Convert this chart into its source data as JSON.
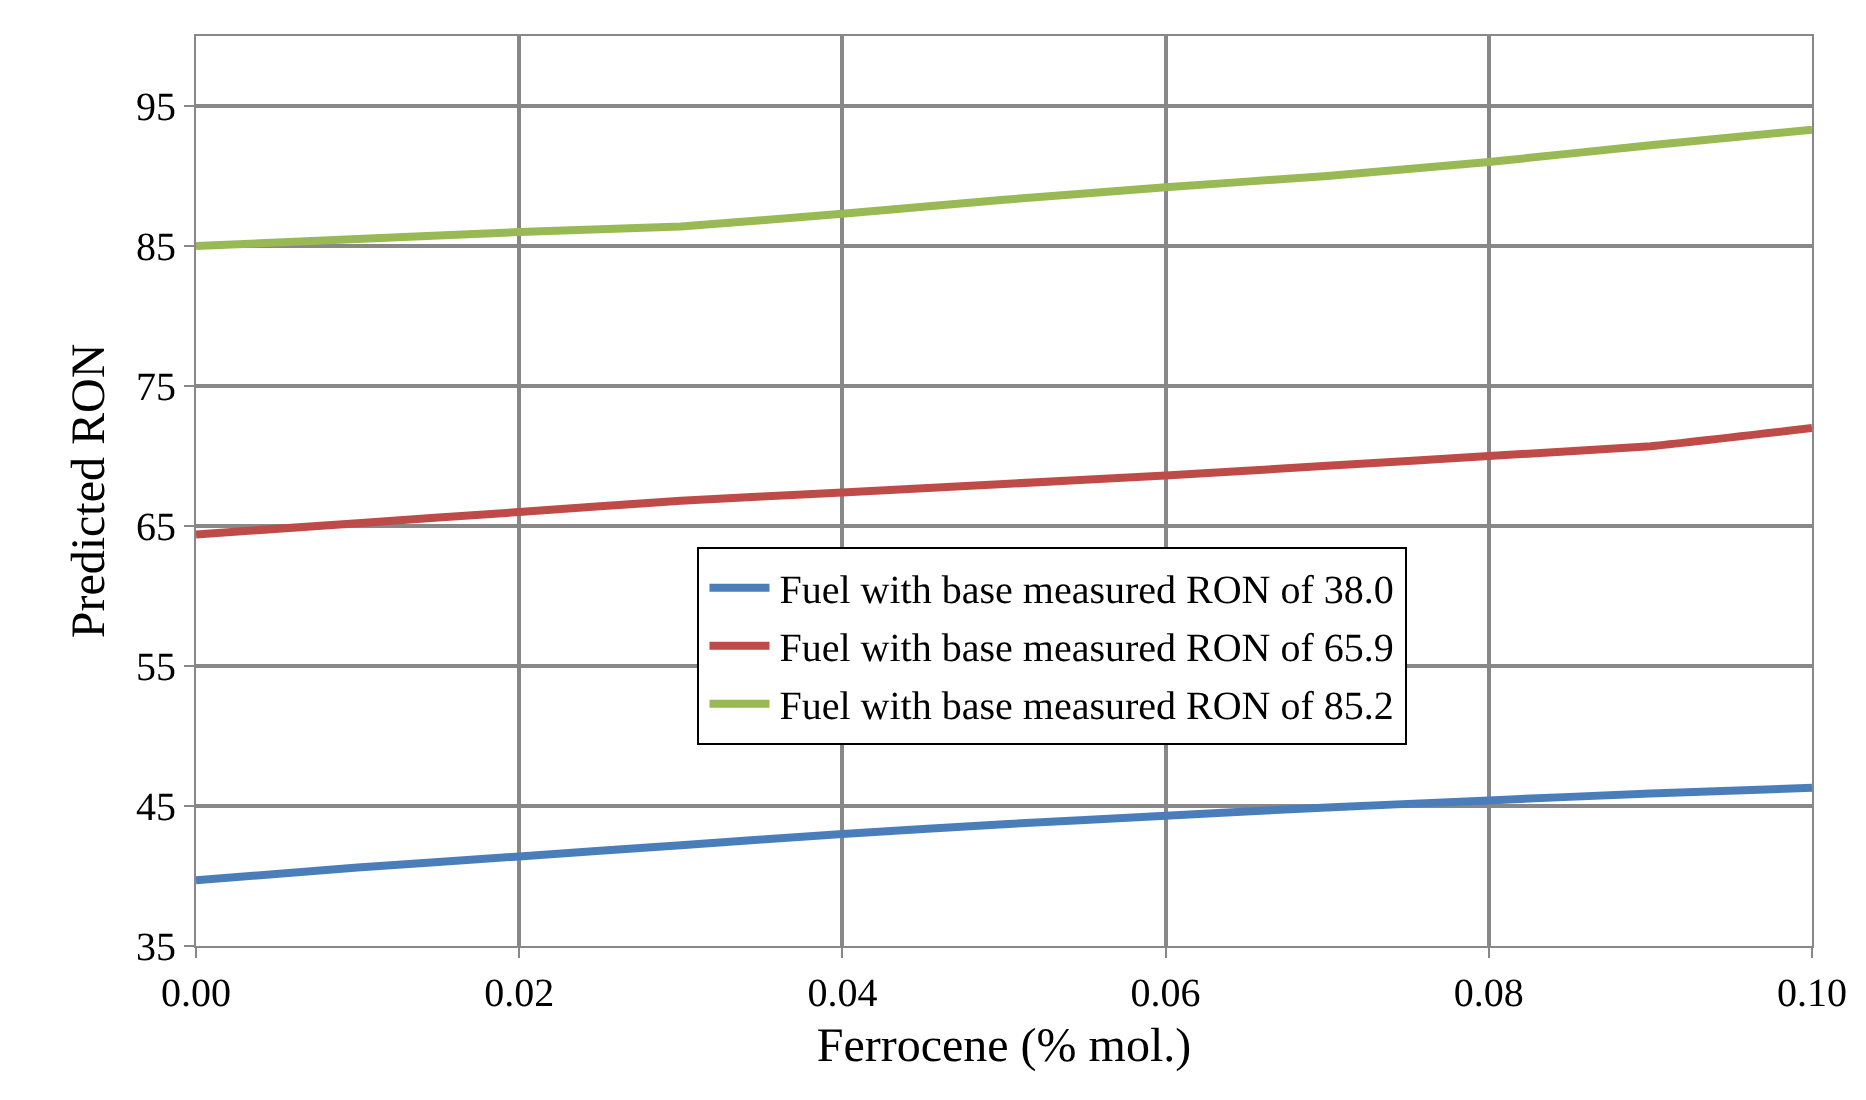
{
  "chart_data": {
    "type": "line",
    "xlabel": "Ferrocene (% mol.)",
    "ylabel": "Predicted RON",
    "x": [
      0,
      0.01,
      0.02,
      0.03,
      0.04,
      0.05,
      0.06,
      0.07,
      0.08,
      0.09,
      0.1
    ],
    "series": [
      {
        "name": "Fuel with base measured RON of 38.0",
        "color": "#4a7ebb",
        "values": [
          39.7,
          40.6,
          41.4,
          42.2,
          43.0,
          43.7,
          44.3,
          44.9,
          45.4,
          45.9,
          46.3
        ]
      },
      {
        "name": "Fuel with base measured RON of 65.9",
        "color": "#be4b48",
        "values": [
          64.4,
          65.2,
          66.0,
          66.8,
          67.4,
          68.0,
          68.6,
          69.3,
          70.0,
          70.7,
          72.0
        ]
      },
      {
        "name": "Fuel with base measured RON of 85.2",
        "color": "#98b954",
        "values": [
          85.0,
          85.5,
          86.0,
          86.4,
          87.3,
          88.3,
          89.2,
          90.0,
          91.0,
          92.2,
          93.3
        ]
      }
    ],
    "xlim": [
      0,
      0.1
    ],
    "xticks": [
      {
        "value": 0,
        "label": "0.00"
      },
      {
        "value": 0.02,
        "label": "0.02"
      },
      {
        "value": 0.04,
        "label": "0.04"
      },
      {
        "value": 0.06,
        "label": "0.06"
      },
      {
        "value": 0.08,
        "label": "0.08"
      },
      {
        "value": 0.1,
        "label": "0.10"
      }
    ],
    "ylim": [
      35,
      100
    ],
    "yticks": [
      35,
      45,
      55,
      65,
      75,
      85,
      95
    ],
    "grid": true,
    "legend": "center",
    "marker": "none",
    "line_style": "solid"
  }
}
